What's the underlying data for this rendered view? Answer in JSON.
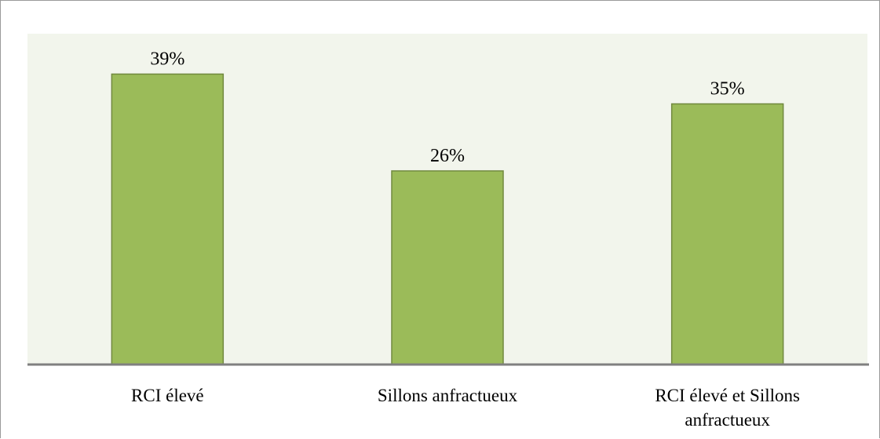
{
  "chart_data": {
    "type": "bar",
    "categories": [
      [
        "RCI élevé"
      ],
      [
        "Sillons anfractueux"
      ],
      [
        "RCI élevé et Sillons",
        "anfractueux"
      ]
    ],
    "values": [
      39,
      26,
      35
    ],
    "data_labels": [
      "39%",
      "26%",
      "35%"
    ],
    "title": "",
    "xlabel": "",
    "ylabel": "",
    "ylim": [
      0,
      42
    ],
    "grid": false,
    "legend": "none",
    "colors": {
      "plot_background": "#f2f5ec",
      "bar_fill": "#9bbb59",
      "bar_stroke": "#71893f",
      "axis_line": "#808080"
    }
  }
}
